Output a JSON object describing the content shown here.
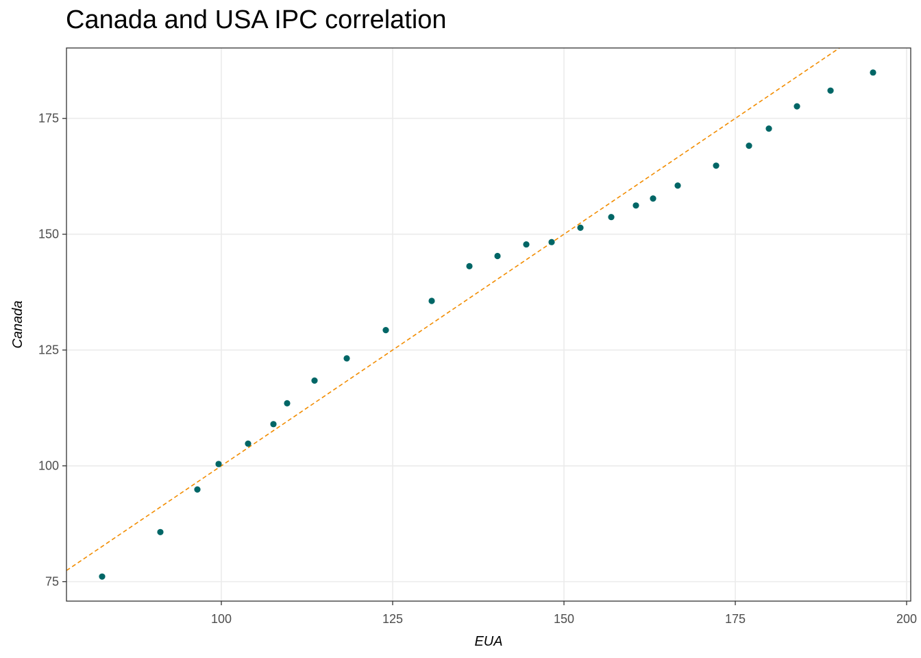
{
  "chart_data": {
    "type": "scatter",
    "title": "Canada and USA IPC correlation",
    "xlabel": "EUA",
    "ylabel": "Canada",
    "xlim": [
      77.4,
      200.6
    ],
    "ylim": [
      70.8,
      190.2
    ],
    "x_ticks": [
      100,
      125,
      150,
      175,
      200
    ],
    "y_ticks": [
      75,
      100,
      125,
      150,
      175
    ],
    "grid": true,
    "legend": "none",
    "point_color": "#006666",
    "line_color": "#f28c00",
    "reference_line": {
      "style": "dashed",
      "points": [
        [
          77.4,
          77.4
        ],
        [
          200.6,
          200.6
        ]
      ]
    },
    "points": [
      {
        "x": 82.6,
        "y": 76.1
      },
      {
        "x": 91.1,
        "y": 85.7
      },
      {
        "x": 96.5,
        "y": 94.9
      },
      {
        "x": 99.6,
        "y": 100.4
      },
      {
        "x": 103.9,
        "y": 104.8
      },
      {
        "x": 107.6,
        "y": 109.0
      },
      {
        "x": 109.6,
        "y": 113.5
      },
      {
        "x": 113.6,
        "y": 118.4
      },
      {
        "x": 118.3,
        "y": 123.2
      },
      {
        "x": 124.0,
        "y": 129.3
      },
      {
        "x": 130.7,
        "y": 135.6
      },
      {
        "x": 136.2,
        "y": 143.1
      },
      {
        "x": 140.3,
        "y": 145.3
      },
      {
        "x": 144.5,
        "y": 147.8
      },
      {
        "x": 148.2,
        "y": 148.3
      },
      {
        "x": 152.4,
        "y": 151.4
      },
      {
        "x": 156.9,
        "y": 153.7
      },
      {
        "x": 160.5,
        "y": 156.2
      },
      {
        "x": 163.0,
        "y": 157.7
      },
      {
        "x": 166.6,
        "y": 160.5
      },
      {
        "x": 172.2,
        "y": 164.8
      },
      {
        "x": 177.0,
        "y": 169.1
      },
      {
        "x": 179.9,
        "y": 172.8
      },
      {
        "x": 184.0,
        "y": 177.6
      },
      {
        "x": 188.9,
        "y": 181.0
      },
      {
        "x": 195.1,
        "y": 184.9
      }
    ]
  }
}
